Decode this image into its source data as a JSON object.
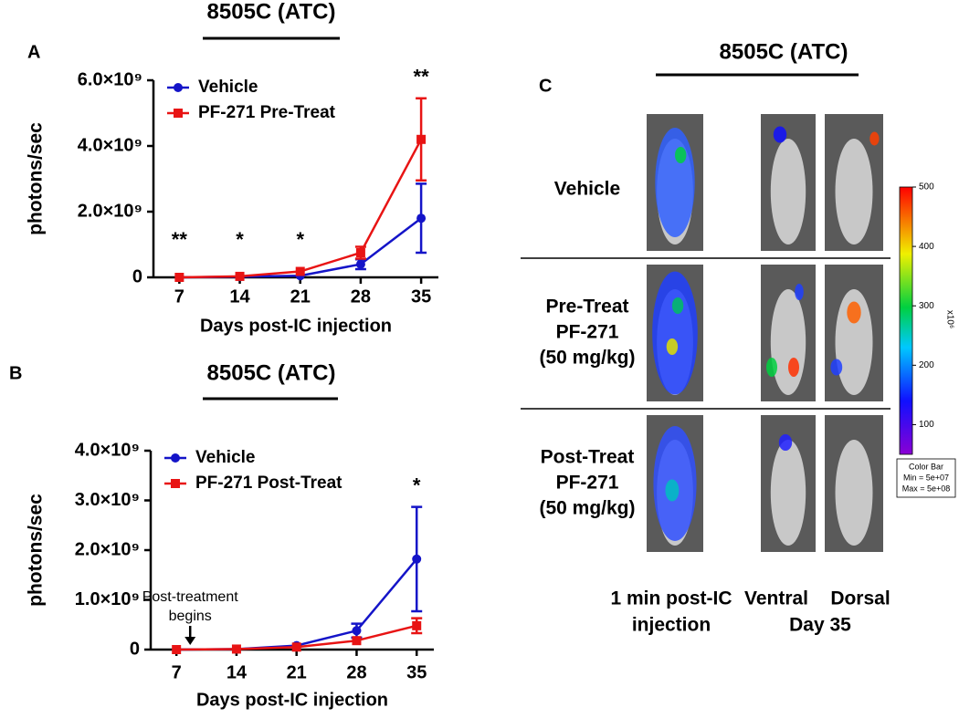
{
  "chart_data": [
    {
      "type": "line",
      "panel": "A",
      "title": "8505C (ATC)",
      "x_label": "Days post-IC injection",
      "y_label": "photons/sec",
      "x": [
        7,
        14,
        21,
        28,
        35
      ],
      "xlim": [
        4,
        37
      ],
      "xticks": [
        7,
        14,
        21,
        28,
        35
      ],
      "ylim": [
        0,
        6000000000
      ],
      "yticks": [
        {
          "value": 0,
          "label": "0"
        },
        {
          "value": 2000000000,
          "label": "2.0×10⁹"
        },
        {
          "value": 4000000000,
          "label": "4.0×10⁹"
        },
        {
          "value": 6000000000,
          "label": "6.0×10⁹"
        }
      ],
      "legend": "upper left",
      "series": [
        {
          "name": "Vehicle",
          "color": "#1414c8",
          "marker": "circle",
          "values": [
            0,
            20000000,
            50000000,
            400000000,
            1800000000
          ],
          "error": [
            0,
            0,
            0,
            150000000,
            1050000000
          ]
        },
        {
          "name": "PF-271 Pre-Treat",
          "color": "#e81414",
          "marker": "square",
          "values": [
            0,
            30000000,
            180000000,
            750000000,
            4200000000
          ],
          "error": [
            0,
            0,
            0,
            180000000,
            1250000000
          ]
        }
      ],
      "annotations": [
        {
          "x": 7,
          "text": "**"
        },
        {
          "x": 14,
          "text": "*"
        },
        {
          "x": 21,
          "text": "*"
        },
        {
          "x": 35,
          "text": "**"
        }
      ]
    },
    {
      "type": "line",
      "panel": "B",
      "title": "8505C (ATC)",
      "x_label": "Days post-IC injection",
      "y_label": "photons/sec",
      "x": [
        7,
        14,
        21,
        28,
        35
      ],
      "xlim": [
        4,
        37
      ],
      "xticks": [
        7,
        14,
        21,
        28,
        35
      ],
      "ylim": [
        0,
        4000000000
      ],
      "yticks": [
        {
          "value": 0,
          "label": "0"
        },
        {
          "value": 1000000000,
          "label": "1.0×10⁹"
        },
        {
          "value": 2000000000,
          "label": "2.0×10⁹"
        },
        {
          "value": 3000000000,
          "label": "3.0×10⁹"
        },
        {
          "value": 4000000000,
          "label": "4.0×10⁹"
        }
      ],
      "legend": "upper left",
      "series": [
        {
          "name": "Vehicle",
          "color": "#1414c8",
          "marker": "circle",
          "values": [
            0,
            10000000,
            80000000,
            380000000,
            1820000000
          ],
          "error": [
            0,
            0,
            0,
            140000000,
            1050000000
          ]
        },
        {
          "name": "PF-271 Post-Treat",
          "color": "#e81414",
          "marker": "square",
          "values": [
            0,
            10000000,
            50000000,
            180000000,
            480000000
          ],
          "error": [
            0,
            0,
            0,
            0,
            150000000
          ]
        }
      ],
      "annotations": [
        {
          "x": 35,
          "text": "*"
        }
      ],
      "arrow_annotation": {
        "x": 8.6,
        "lines": [
          "Post-treatment",
          "begins"
        ]
      }
    }
  ],
  "panel_c": {
    "letter": "C",
    "title": "8505C (ATC)",
    "rows": [
      [
        "Vehicle"
      ],
      [
        "Pre-Treat",
        "PF-271",
        "(50 mg/kg)"
      ],
      [
        "Post-Treat",
        "PF-271",
        "(50 mg/kg)"
      ]
    ],
    "column_labels": {
      "first": [
        "1 min post-IC",
        "injection"
      ],
      "ventral": "Ventral",
      "dorsal": "Dorsal",
      "day": "Day 35"
    },
    "colorbar": {
      "ticks": [
        100,
        200,
        300,
        400,
        500
      ],
      "range": [
        50,
        500
      ],
      "unit": "x10⁶",
      "box": [
        "Color Bar",
        "Min = 5e+07",
        "Max = 5e+08"
      ]
    }
  }
}
